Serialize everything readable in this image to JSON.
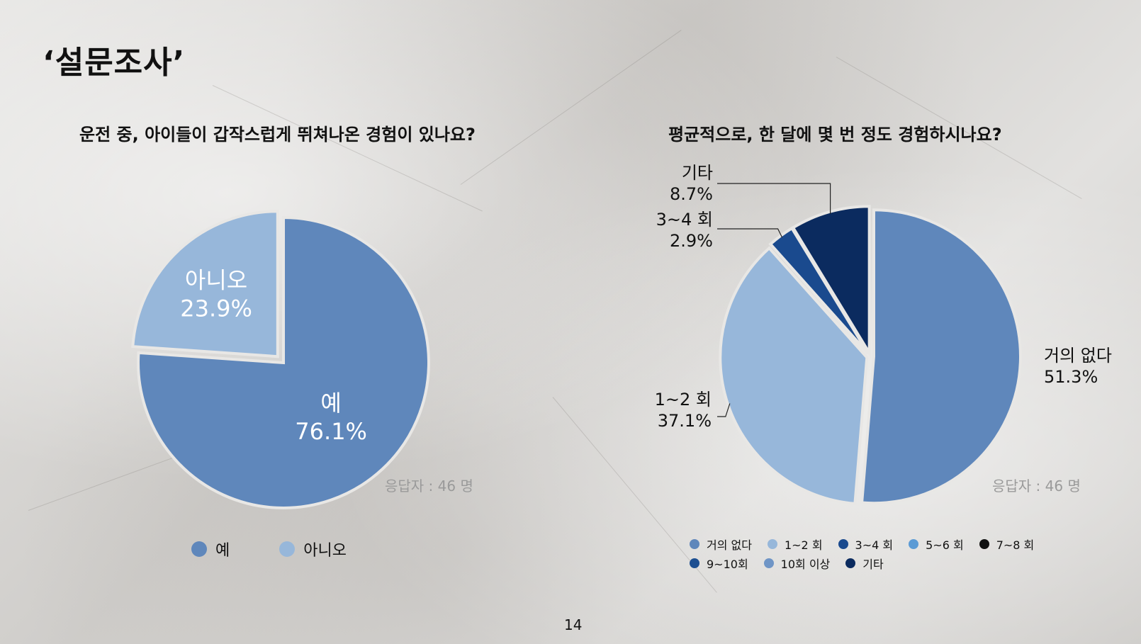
{
  "slide": {
    "title": "‘설문조사’",
    "page_number": "14"
  },
  "chart_data": [
    {
      "type": "pie",
      "title": "운전 중, 아이들이 갑작스럽게 뛰쳐나온 경험이 있나요?",
      "categories": [
        "예",
        "아니오"
      ],
      "values": [
        76.1,
        23.9
      ],
      "value_labels": [
        "76.1%",
        "23.9%"
      ],
      "colors": [
        "#5f87bb",
        "#97b7da"
      ],
      "exploded": [
        false,
        true
      ],
      "respondents": "응답자 : 46 명",
      "legend": [
        {
          "label": "예",
          "color": "#5f87bb"
        },
        {
          "label": "아니오",
          "color": "#97b7da"
        }
      ],
      "legend_position": "bottom"
    },
    {
      "type": "pie",
      "title": "평균적으로, 한 달에 몇 번 정도 경험하시나요?",
      "categories": [
        "거의 없다",
        "1~2 회",
        "3~4 회",
        "기타"
      ],
      "values": [
        51.3,
        37.1,
        2.9,
        8.7
      ],
      "value_labels": [
        "51.3%",
        "37.1%",
        "2.9%",
        "8.7%"
      ],
      "colors": [
        "#5f87bb",
        "#97b7da",
        "#1a4a8e",
        "#0b2b5f"
      ],
      "respondents": "응답자 : 46 명",
      "legend": [
        {
          "label": "거의 없다",
          "color": "#5f87bb"
        },
        {
          "label": "1~2 회",
          "color": "#97b7da"
        },
        {
          "label": "3~4 회",
          "color": "#1a4a8e"
        },
        {
          "label": "5~6 회",
          "color": "#5b9bd5"
        },
        {
          "label": "7~8 회",
          "color": "#111111"
        },
        {
          "label": "9~10회",
          "color": "#1d4f91"
        },
        {
          "label": "10회 이상",
          "color": "#6f95c6"
        },
        {
          "label": "기타",
          "color": "#0b2b5f"
        }
      ],
      "legend_position": "bottom"
    }
  ]
}
